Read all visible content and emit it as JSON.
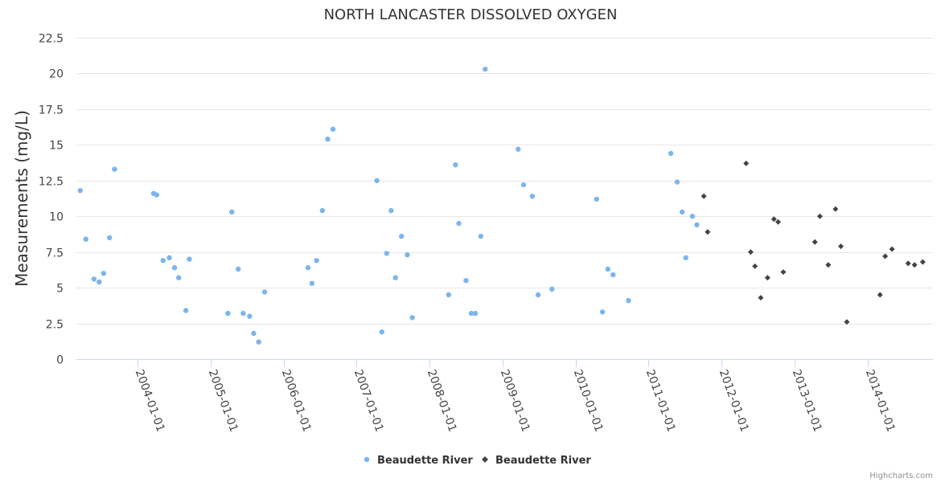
{
  "chart_data": {
    "type": "scatter",
    "title": "NORTH LANCASTER DISSOLVED OXYGEN",
    "xlabel": "",
    "ylabel": "Measurements (mg/L)",
    "ylim": [
      0,
      22.5
    ],
    "yticks": [
      "0",
      "2.5",
      "5",
      "7.5",
      "10",
      "12.5",
      "15",
      "17.5",
      "20",
      "22.5"
    ],
    "xlim": [
      "2003-03-01",
      "2014-11-25"
    ],
    "xticks": [
      "2004-01-01",
      "2005-01-01",
      "2006-01-01",
      "2007-01-01",
      "2008-01-01",
      "2009-01-01",
      "2010-01-01",
      "2011-01-01",
      "2012-01-01",
      "2013-01-01",
      "2014-01-01"
    ],
    "grid": true,
    "legend_position": "bottom-center",
    "series": [
      {
        "name": "Beaudette River",
        "marker": "circle",
        "color": "#7cb5ec",
        "points": [
          {
            "x": "2003-03-20",
            "y": 11.8
          },
          {
            "x": "2003-04-17",
            "y": 8.4
          },
          {
            "x": "2003-05-28",
            "y": 5.6
          },
          {
            "x": "2003-06-23",
            "y": 5.4
          },
          {
            "x": "2003-07-15",
            "y": 6.0
          },
          {
            "x": "2003-08-14",
            "y": 8.5
          },
          {
            "x": "2003-09-08",
            "y": 13.3
          },
          {
            "x": "2004-03-21",
            "y": 11.6
          },
          {
            "x": "2004-04-06",
            "y": 11.5
          },
          {
            "x": "2004-05-08",
            "y": 6.9
          },
          {
            "x": "2004-06-08",
            "y": 7.1
          },
          {
            "x": "2004-07-04",
            "y": 6.4
          },
          {
            "x": "2004-07-25",
            "y": 5.7
          },
          {
            "x": "2004-08-30",
            "y": 3.4
          },
          {
            "x": "2004-09-16",
            "y": 7.0
          },
          {
            "x": "2005-03-28",
            "y": 3.2
          },
          {
            "x": "2005-04-17",
            "y": 10.3
          },
          {
            "x": "2005-05-19",
            "y": 6.3
          },
          {
            "x": "2005-06-13",
            "y": 3.2
          },
          {
            "x": "2005-07-15",
            "y": 3.0
          },
          {
            "x": "2005-08-04",
            "y": 1.8
          },
          {
            "x": "2005-08-29",
            "y": 1.2
          },
          {
            "x": "2005-09-28",
            "y": 4.7
          },
          {
            "x": "2006-05-03",
            "y": 6.4
          },
          {
            "x": "2006-05-23",
            "y": 5.3
          },
          {
            "x": "2006-06-15",
            "y": 6.9
          },
          {
            "x": "2006-07-14",
            "y": 10.4
          },
          {
            "x": "2006-08-10",
            "y": 15.4
          },
          {
            "x": "2006-09-05",
            "y": 16.1
          },
          {
            "x": "2007-04-13",
            "y": 12.5
          },
          {
            "x": "2007-05-08",
            "y": 1.9
          },
          {
            "x": "2007-06-01",
            "y": 7.4
          },
          {
            "x": "2007-06-23",
            "y": 10.4
          },
          {
            "x": "2007-07-15",
            "y": 5.7
          },
          {
            "x": "2007-08-14",
            "y": 8.6
          },
          {
            "x": "2007-09-12",
            "y": 7.3
          },
          {
            "x": "2007-10-07",
            "y": 2.9
          },
          {
            "x": "2008-04-06",
            "y": 4.5
          },
          {
            "x": "2008-05-10",
            "y": 13.6
          },
          {
            "x": "2008-05-27",
            "y": 9.5
          },
          {
            "x": "2008-07-02",
            "y": 5.5
          },
          {
            "x": "2008-07-29",
            "y": 3.2
          },
          {
            "x": "2008-08-18",
            "y": 3.2
          },
          {
            "x": "2008-09-14",
            "y": 8.6
          },
          {
            "x": "2008-10-06",
            "y": 20.3
          },
          {
            "x": "2009-03-20",
            "y": 14.7
          },
          {
            "x": "2009-04-16",
            "y": 12.2
          },
          {
            "x": "2009-05-30",
            "y": 11.4
          },
          {
            "x": "2009-06-28",
            "y": 4.5
          },
          {
            "x": "2009-09-05",
            "y": 4.9
          },
          {
            "x": "2010-04-16",
            "y": 11.2
          },
          {
            "x": "2010-05-16",
            "y": 3.3
          },
          {
            "x": "2010-06-12",
            "y": 6.3
          },
          {
            "x": "2010-07-08",
            "y": 5.9
          },
          {
            "x": "2010-09-23",
            "y": 4.1
          },
          {
            "x": "2011-04-23",
            "y": 14.4
          },
          {
            "x": "2011-05-25",
            "y": 12.4
          },
          {
            "x": "2011-06-19",
            "y": 10.3
          },
          {
            "x": "2011-07-07",
            "y": 7.1
          },
          {
            "x": "2011-08-09",
            "y": 10.0
          },
          {
            "x": "2011-08-31",
            "y": 9.4
          }
        ]
      },
      {
        "name": "Beaudette River",
        "marker": "diamond",
        "color": "#434348",
        "points": [
          {
            "x": "2011-10-05",
            "y": 11.4
          },
          {
            "x": "2011-10-24",
            "y": 8.9
          },
          {
            "x": "2012-05-04",
            "y": 13.7
          },
          {
            "x": "2012-05-27",
            "y": 7.5
          },
          {
            "x": "2012-06-17",
            "y": 6.5
          },
          {
            "x": "2012-07-16",
            "y": 4.3
          },
          {
            "x": "2012-08-19",
            "y": 5.7
          },
          {
            "x": "2012-09-20",
            "y": 9.8
          },
          {
            "x": "2012-10-11",
            "y": 9.6
          },
          {
            "x": "2012-11-06",
            "y": 6.1
          },
          {
            "x": "2013-04-13",
            "y": 8.2
          },
          {
            "x": "2013-05-08",
            "y": 10.0
          },
          {
            "x": "2013-06-19",
            "y": 6.6
          },
          {
            "x": "2013-07-25",
            "y": 10.5
          },
          {
            "x": "2013-08-21",
            "y": 7.9
          },
          {
            "x": "2013-09-20",
            "y": 2.6
          },
          {
            "x": "2014-03-05",
            "y": 4.5
          },
          {
            "x": "2014-03-31",
            "y": 7.2
          },
          {
            "x": "2014-05-04",
            "y": 7.7
          },
          {
            "x": "2014-07-24",
            "y": 6.7
          },
          {
            "x": "2014-08-25",
            "y": 6.6
          },
          {
            "x": "2014-10-05",
            "y": 6.8
          }
        ]
      }
    ]
  },
  "credits": "Highcharts.com"
}
